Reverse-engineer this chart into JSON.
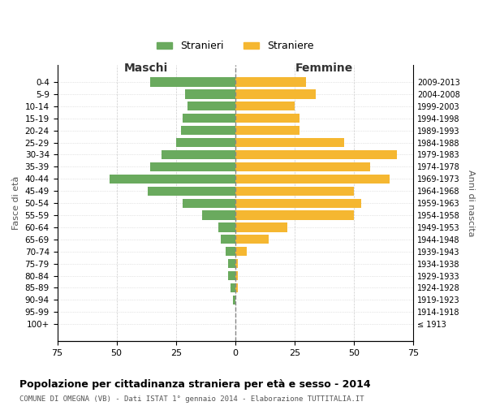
{
  "age_groups": [
    "100+",
    "95-99",
    "90-94",
    "85-89",
    "80-84",
    "75-79",
    "70-74",
    "65-69",
    "60-64",
    "55-59",
    "50-54",
    "45-49",
    "40-44",
    "35-39",
    "30-34",
    "25-29",
    "20-24",
    "15-19",
    "10-14",
    "5-9",
    "0-4"
  ],
  "birth_years": [
    "≤ 1913",
    "1914-1918",
    "1919-1923",
    "1924-1928",
    "1929-1933",
    "1934-1938",
    "1939-1943",
    "1944-1948",
    "1949-1953",
    "1954-1958",
    "1959-1963",
    "1964-1968",
    "1969-1973",
    "1974-1978",
    "1979-1983",
    "1984-1988",
    "1989-1993",
    "1994-1998",
    "1999-2003",
    "2004-2008",
    "2009-2013"
  ],
  "males": [
    0,
    0,
    1,
    2,
    3,
    3,
    4,
    6,
    7,
    14,
    22,
    37,
    53,
    36,
    31,
    25,
    23,
    22,
    20,
    21,
    36
  ],
  "females": [
    0,
    0,
    0,
    1,
    1,
    1,
    5,
    14,
    22,
    50,
    53,
    50,
    65,
    57,
    68,
    46,
    27,
    27,
    25,
    34,
    30
  ],
  "male_color": "#6aaa5e",
  "female_color": "#f5b731",
  "title": "Popolazione per cittadinanza straniera per età e sesso - 2014",
  "subtitle": "COMUNE DI OMEGNA (VB) - Dati ISTAT 1° gennaio 2014 - Elaborazione TUTTITALIA.IT",
  "ylabel_left": "Fasce di età",
  "ylabel_right": "Anni di nascita",
  "xlabel_maschi": "Maschi",
  "xlabel_femmine": "Femmine",
  "legend_male": "Stranieri",
  "legend_female": "Straniere",
  "xlim": 75,
  "bg_color": "#ffffff",
  "grid_color": "#cccccc",
  "center_line_color": "#888888"
}
